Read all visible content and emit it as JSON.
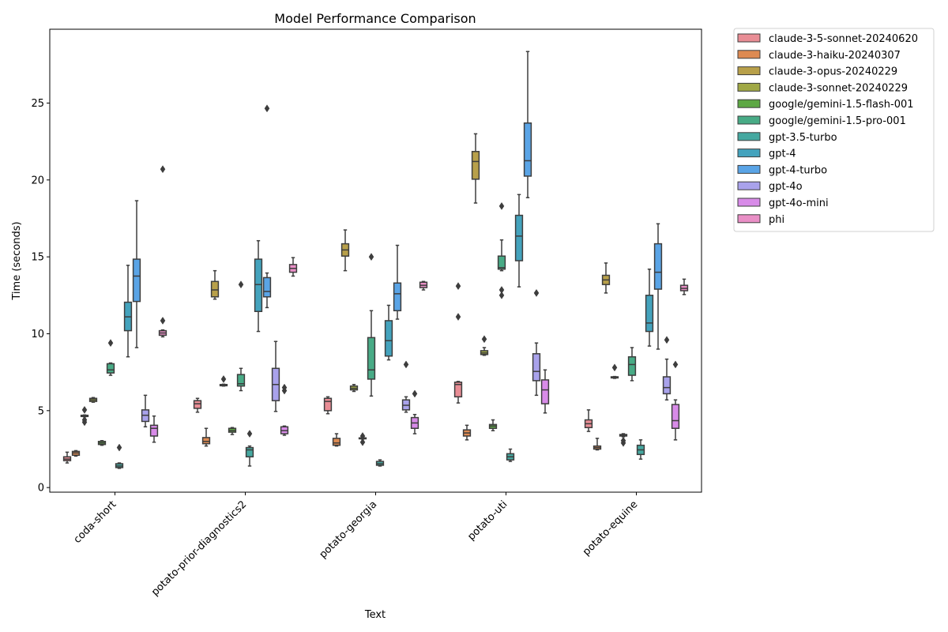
{
  "chart_data": {
    "type": "box",
    "title": "Model Performance Comparison",
    "xlabel": "Text",
    "ylabel": "Time (seconds)",
    "ylim": [
      -0.3,
      29.8
    ],
    "yticks": [
      0,
      5,
      10,
      15,
      20,
      25
    ],
    "grid": false,
    "legend_position": "outside-right",
    "categories": [
      "coda-short",
      "potato-prior-diagnostics2",
      "potato-georgia",
      "potato-uti",
      "potato-equine"
    ],
    "series": [
      {
        "name": "claude-3-5-sonnet-20240620",
        "color": "#e98d95",
        "boxes": [
          {
            "whislo": 1.6,
            "q1": 1.75,
            "med": 1.85,
            "q3": 2.0,
            "whishi": 2.3,
            "fliers": []
          },
          {
            "whislo": 4.9,
            "q1": 5.15,
            "med": 5.45,
            "q3": 5.65,
            "whishi": 5.8,
            "fliers": []
          },
          {
            "whislo": 4.8,
            "q1": 5.0,
            "med": 5.6,
            "q3": 5.8,
            "whishi": 5.9,
            "fliers": []
          },
          {
            "whislo": 5.5,
            "q1": 5.9,
            "med": 6.7,
            "q3": 6.85,
            "whishi": 6.9,
            "fliers": [
              11.1,
              13.1
            ]
          },
          {
            "whislo": 3.65,
            "q1": 3.9,
            "med": 4.15,
            "q3": 4.4,
            "whishi": 5.05,
            "fliers": []
          }
        ]
      },
      {
        "name": "claude-3-haiku-20240307",
        "color": "#dd8a52",
        "boxes": [
          {
            "whislo": 2.05,
            "q1": 2.1,
            "med": 2.25,
            "q3": 2.35,
            "whishi": 2.4,
            "fliers": []
          },
          {
            "whislo": 2.7,
            "q1": 2.85,
            "med": 3.0,
            "q3": 3.25,
            "whishi": 3.85,
            "fliers": []
          },
          {
            "whislo": 2.7,
            "q1": 2.75,
            "med": 2.9,
            "q3": 3.2,
            "whishi": 3.5,
            "fliers": []
          },
          {
            "whislo": 3.1,
            "q1": 3.35,
            "med": 3.55,
            "q3": 3.75,
            "whishi": 4.05,
            "fliers": []
          },
          {
            "whislo": 2.45,
            "q1": 2.5,
            "med": 2.6,
            "q3": 2.7,
            "whishi": 3.2,
            "fliers": []
          }
        ]
      },
      {
        "name": "claude-3-opus-20240229",
        "color": "#b8a04a",
        "boxes": [
          {
            "whislo": 4.6,
            "q1": 4.62,
            "med": 4.66,
            "q3": 4.7,
            "whishi": 4.72,
            "fliers": [
              4.25,
              4.4,
              5.05
            ]
          },
          {
            "whislo": 12.25,
            "q1": 12.4,
            "med": 12.85,
            "q3": 13.4,
            "whishi": 14.1,
            "fliers": []
          },
          {
            "whislo": 14.1,
            "q1": 15.05,
            "med": 15.45,
            "q3": 15.85,
            "whishi": 16.75,
            "fliers": []
          },
          {
            "whislo": 18.5,
            "q1": 20.05,
            "med": 21.2,
            "q3": 21.85,
            "whishi": 23.0,
            "fliers": []
          },
          {
            "whislo": 12.65,
            "q1": 13.2,
            "med": 13.5,
            "q3": 13.8,
            "whishi": 14.6,
            "fliers": []
          }
        ]
      },
      {
        "name": "claude-3-sonnet-20240229",
        "color": "#a0a845",
        "boxes": [
          {
            "whislo": 5.55,
            "q1": 5.6,
            "med": 5.7,
            "q3": 5.8,
            "whishi": 5.85,
            "fliers": []
          },
          {
            "whislo": 6.6,
            "q1": 6.62,
            "med": 6.66,
            "q3": 6.7,
            "whishi": 6.72,
            "fliers": [
              7.05
            ]
          },
          {
            "whislo": 6.25,
            "q1": 6.35,
            "med": 6.45,
            "q3": 6.6,
            "whishi": 6.7,
            "fliers": []
          },
          {
            "whislo": 8.6,
            "q1": 8.65,
            "med": 8.75,
            "q3": 8.9,
            "whishi": 9.1,
            "fliers": [
              9.65
            ]
          },
          {
            "whislo": 7.1,
            "q1": 7.13,
            "med": 7.16,
            "q3": 7.2,
            "whishi": 7.22,
            "fliers": [
              7.8
            ]
          }
        ]
      },
      {
        "name": "google/gemini-1.5-flash-001",
        "color": "#5da844",
        "boxes": [
          {
            "whislo": 2.75,
            "q1": 2.8,
            "med": 2.9,
            "q3": 3.0,
            "whishi": 3.05,
            "fliers": []
          },
          {
            "whislo": 3.45,
            "q1": 3.6,
            "med": 3.7,
            "q3": 3.85,
            "whishi": 3.9,
            "fliers": []
          },
          {
            "whislo": 3.15,
            "q1": 3.17,
            "med": 3.2,
            "q3": 3.23,
            "whishi": 3.25,
            "fliers": [
              2.95,
              3.35
            ]
          },
          {
            "whislo": 3.7,
            "q1": 3.85,
            "med": 4.0,
            "q3": 4.1,
            "whishi": 4.4,
            "fliers": []
          },
          {
            "whislo": 3.3,
            "q1": 3.35,
            "med": 3.4,
            "q3": 3.45,
            "whishi": 3.5,
            "fliers": [
              2.9,
              3.05
            ]
          }
        ]
      },
      {
        "name": "google/gemini-1.5-pro-001",
        "color": "#48ab86",
        "boxes": [
          {
            "whislo": 7.3,
            "q1": 7.45,
            "med": 7.65,
            "q3": 8.05,
            "whishi": 8.1,
            "fliers": [
              9.4
            ]
          },
          {
            "whislo": 6.3,
            "q1": 6.6,
            "med": 6.75,
            "q3": 7.35,
            "whishi": 7.75,
            "fliers": [
              13.2
            ]
          },
          {
            "whislo": 5.95,
            "q1": 7.05,
            "med": 7.65,
            "q3": 9.75,
            "whishi": 11.5,
            "fliers": [
              15.0
            ]
          },
          {
            "whislo": 14.1,
            "q1": 14.2,
            "med": 14.3,
            "q3": 15.05,
            "whishi": 16.1,
            "fliers": [
              12.5,
              12.85,
              18.3
            ]
          },
          {
            "whislo": 6.95,
            "q1": 7.3,
            "med": 8.0,
            "q3": 8.5,
            "whishi": 9.1,
            "fliers": []
          }
        ]
      },
      {
        "name": "gpt-3.5-turbo",
        "color": "#45a8a0",
        "boxes": [
          {
            "whislo": 1.25,
            "q1": 1.3,
            "med": 1.4,
            "q3": 1.55,
            "whishi": 1.6,
            "fliers": [
              2.6
            ]
          },
          {
            "whislo": 1.4,
            "q1": 2.0,
            "med": 2.45,
            "q3": 2.6,
            "whishi": 2.7,
            "fliers": [
              3.5
            ]
          },
          {
            "whislo": 1.4,
            "q1": 1.45,
            "med": 1.55,
            "q3": 1.7,
            "whishi": 1.8,
            "fliers": []
          },
          {
            "whislo": 1.7,
            "q1": 1.8,
            "med": 2.0,
            "q3": 2.2,
            "whishi": 2.5,
            "fliers": []
          },
          {
            "whislo": 1.85,
            "q1": 2.15,
            "med": 2.45,
            "q3": 2.75,
            "whishi": 3.1,
            "fliers": []
          }
        ]
      },
      {
        "name": "gpt-4",
        "color": "#44a3bd",
        "boxes": [
          {
            "whislo": 8.5,
            "q1": 10.2,
            "med": 11.1,
            "q3": 12.05,
            "whishi": 14.45,
            "fliers": []
          },
          {
            "whislo": 10.15,
            "q1": 11.45,
            "med": 13.2,
            "q3": 14.85,
            "whishi": 16.05,
            "fliers": []
          },
          {
            "whislo": 8.3,
            "q1": 8.55,
            "med": 9.55,
            "q3": 10.85,
            "whishi": 11.85,
            "fliers": []
          },
          {
            "whislo": 13.05,
            "q1": 14.75,
            "med": 16.35,
            "q3": 17.7,
            "whishi": 19.05,
            "fliers": []
          },
          {
            "whislo": 9.2,
            "q1": 10.15,
            "med": 10.7,
            "q3": 12.5,
            "whishi": 14.2,
            "fliers": []
          }
        ]
      },
      {
        "name": "gpt-4-turbo",
        "color": "#5aa4e6",
        "boxes": [
          {
            "whislo": 9.1,
            "q1": 12.1,
            "med": 13.75,
            "q3": 14.85,
            "whishi": 18.65,
            "fliers": []
          },
          {
            "whislo": 11.7,
            "q1": 12.4,
            "med": 12.75,
            "q3": 13.65,
            "whishi": 13.95,
            "fliers": [
              24.65
            ]
          },
          {
            "whislo": 10.95,
            "q1": 11.5,
            "med": 12.6,
            "q3": 13.3,
            "whishi": 15.75,
            "fliers": []
          },
          {
            "whislo": 18.85,
            "q1": 20.25,
            "med": 21.25,
            "q3": 23.7,
            "whishi": 28.35,
            "fliers": []
          },
          {
            "whislo": 9.0,
            "q1": 12.9,
            "med": 14.0,
            "q3": 15.85,
            "whishi": 17.15,
            "fliers": []
          }
        ]
      },
      {
        "name": "gpt-4o",
        "color": "#a9a2eb",
        "boxes": [
          {
            "whislo": 3.95,
            "q1": 4.3,
            "med": 4.7,
            "q3": 5.05,
            "whishi": 6.0,
            "fliers": []
          },
          {
            "whislo": 4.95,
            "q1": 5.65,
            "med": 6.7,
            "q3": 7.75,
            "whishi": 9.5,
            "fliers": []
          },
          {
            "whislo": 4.9,
            "q1": 5.05,
            "med": 5.35,
            "q3": 5.7,
            "whishi": 5.9,
            "fliers": [
              8.0
            ]
          },
          {
            "whislo": 6.0,
            "q1": 6.95,
            "med": 7.55,
            "q3": 8.7,
            "whishi": 9.4,
            "fliers": [
              12.65
            ]
          },
          {
            "whislo": 5.7,
            "q1": 6.1,
            "med": 6.5,
            "q3": 7.2,
            "whishi": 8.35,
            "fliers": [
              9.6
            ]
          }
        ]
      },
      {
        "name": "gpt-4o-mini",
        "color": "#d88be8",
        "boxes": [
          {
            "whislo": 2.95,
            "q1": 3.35,
            "med": 3.85,
            "q3": 4.05,
            "whishi": 4.65,
            "fliers": []
          },
          {
            "whislo": 3.4,
            "q1": 3.5,
            "med": 3.7,
            "q3": 3.95,
            "whishi": 4.0,
            "fliers": [
              6.3,
              6.5
            ]
          },
          {
            "whislo": 3.5,
            "q1": 3.85,
            "med": 4.2,
            "q3": 4.55,
            "whishi": 4.75,
            "fliers": [
              6.1
            ]
          },
          {
            "whislo": 4.85,
            "q1": 5.45,
            "med": 6.35,
            "q3": 7.0,
            "whishi": 7.65,
            "fliers": []
          },
          {
            "whislo": 3.1,
            "q1": 3.85,
            "med": 4.35,
            "q3": 5.4,
            "whishi": 5.7,
            "fliers": [
              8.0
            ]
          }
        ]
      },
      {
        "name": "phi",
        "color": "#e98fc6",
        "boxes": [
          {
            "whislo": 9.8,
            "q1": 9.9,
            "med": 10.05,
            "q3": 10.2,
            "whishi": 10.25,
            "fliers": [
              10.85,
              20.7
            ]
          },
          {
            "whislo": 13.75,
            "q1": 14.0,
            "med": 14.25,
            "q3": 14.5,
            "whishi": 14.95,
            "fliers": []
          },
          {
            "whislo": 12.85,
            "q1": 13.0,
            "med": 13.15,
            "q3": 13.35,
            "whishi": 13.4,
            "fliers": []
          },
          null,
          {
            "whislo": 12.55,
            "q1": 12.8,
            "med": 12.95,
            "q3": 13.15,
            "whishi": 13.55,
            "fliers": []
          }
        ]
      }
    ]
  }
}
